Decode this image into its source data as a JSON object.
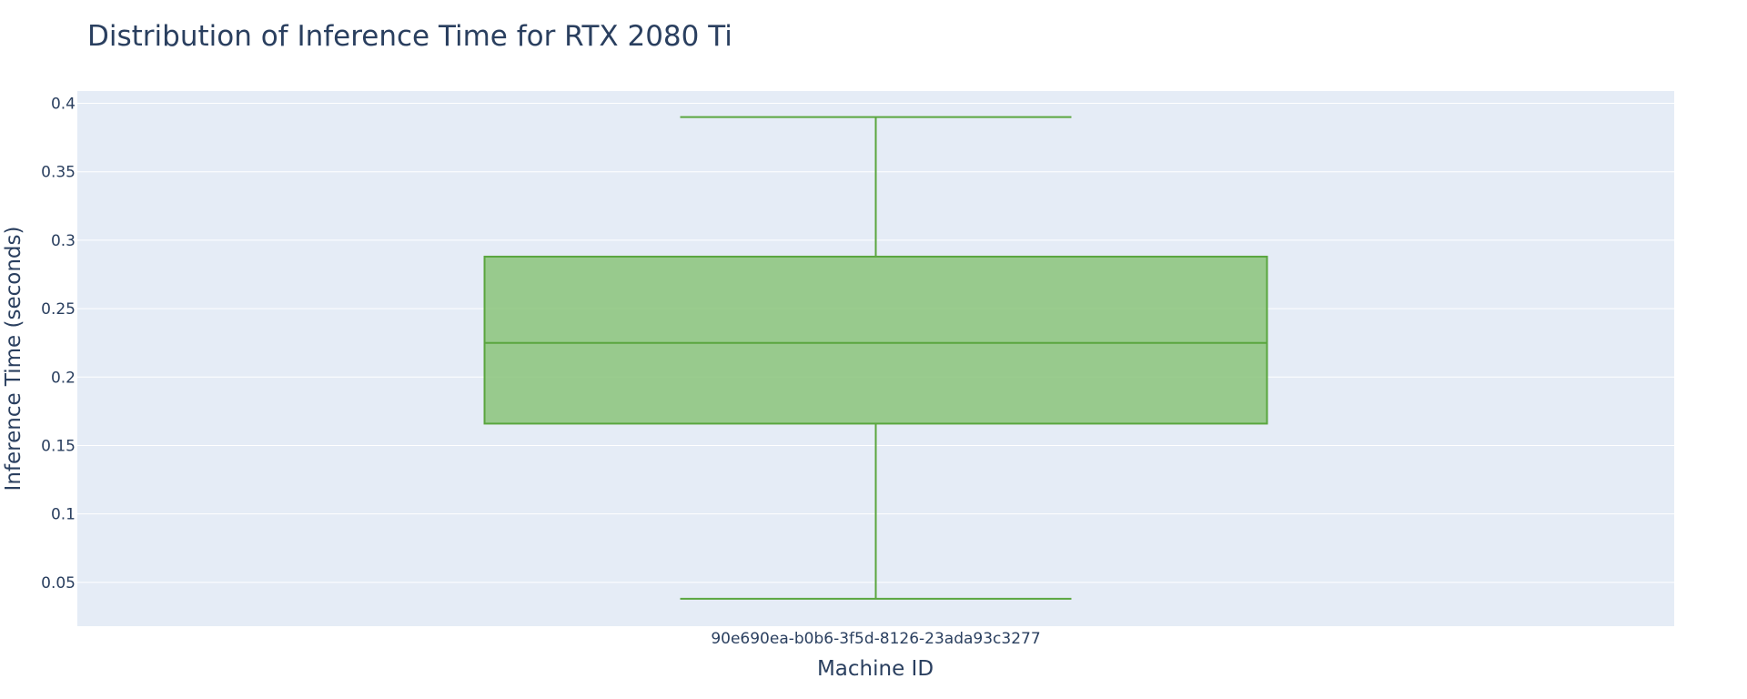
{
  "chart_data": {
    "type": "box",
    "title": "Distribution of Inference Time for RTX 2080 Ti",
    "xlabel": "Machine ID",
    "ylabel": "Inference Time (seconds)",
    "categories": [
      "90e690ea-b0b6-3f5d-8126-23ada93c3277"
    ],
    "series": [
      {
        "category": "90e690ea-b0b6-3f5d-8126-23ada93c3277",
        "min": 0.038,
        "q1": 0.166,
        "median": 0.225,
        "q3": 0.288,
        "max": 0.39
      }
    ],
    "yticks": [
      0.05,
      0.1,
      0.15,
      0.2,
      0.25,
      0.3,
      0.35,
      0.4
    ],
    "ytick_labels": [
      "0.05",
      "0.1",
      "0.15",
      "0.2",
      "0.25",
      "0.3",
      "0.35",
      "0.4"
    ],
    "ylim": [
      0.018,
      0.409
    ],
    "grid": true,
    "legend": "none",
    "colors": {
      "plot_bg": "#e5ecf6",
      "grid": "#ffffff",
      "box_line": "#5aa63f",
      "box_fill": "#8bc47a",
      "text": "#2a3f5f"
    }
  }
}
